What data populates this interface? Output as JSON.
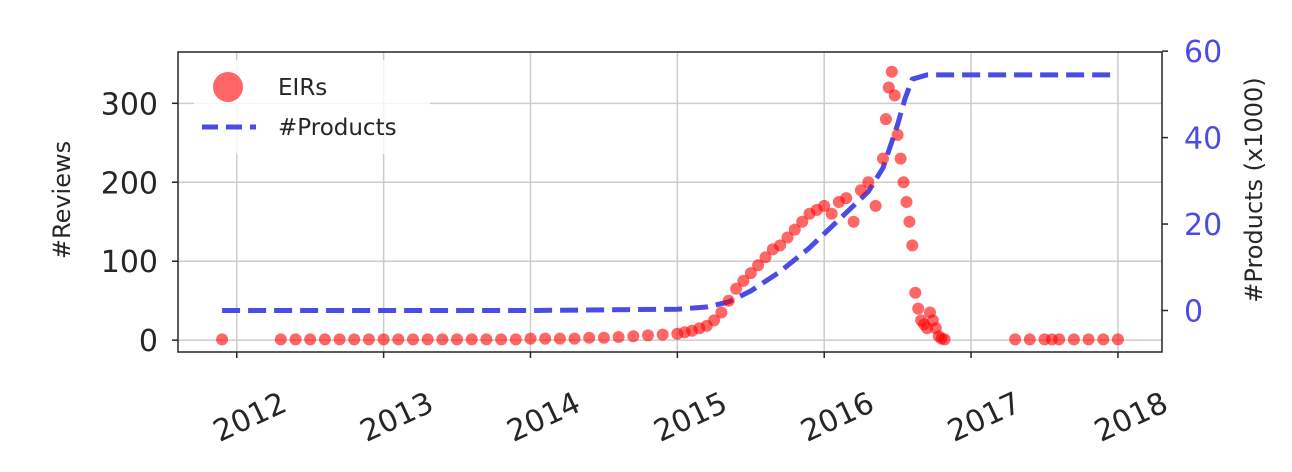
{
  "chart_data": {
    "type": "scatter",
    "title": "",
    "xlabel": "",
    "ylabel": "#Reviews",
    "y2label": "#Products (x1000)",
    "xlim": [
      2011.6,
      2018.3
    ],
    "ylim": [
      -15,
      365
    ],
    "y2lim": [
      -9.6,
      59.8
    ],
    "xticks": [
      2012,
      2013,
      2014,
      2015,
      2016,
      2017,
      2018
    ],
    "xtick_labels": [
      "2012",
      "2013",
      "2014",
      "2015",
      "2016",
      "2017",
      "2018"
    ],
    "yticks": [
      0,
      100,
      200,
      300
    ],
    "ytick_labels": [
      "0",
      "100",
      "200",
      "300"
    ],
    "y2ticks": [
      0,
      20,
      40,
      60
    ],
    "y2tick_labels": [
      "0",
      "20",
      "40",
      "60"
    ],
    "grid": true,
    "legend_position": "top-left",
    "colors": {
      "eirs": "#ff0000",
      "products": "#4b4be6",
      "axis_right": "#4b4be6",
      "grid": "#cccccc",
      "text": "#262626"
    },
    "series": [
      {
        "name": "EIRs",
        "kind": "scatter",
        "axis": "left",
        "x": [
          2011.9,
          2012.3,
          2012.4,
          2012.5,
          2012.6,
          2012.7,
          2012.8,
          2012.9,
          2013.0,
          2013.1,
          2013.2,
          2013.3,
          2013.4,
          2013.5,
          2013.6,
          2013.7,
          2013.8,
          2013.9,
          2014.0,
          2014.1,
          2014.2,
          2014.3,
          2014.4,
          2014.5,
          2014.6,
          2014.7,
          2014.8,
          2014.9,
          2015.0,
          2015.05,
          2015.1,
          2015.15,
          2015.2,
          2015.25,
          2015.3,
          2015.35,
          2015.4,
          2015.45,
          2015.5,
          2015.55,
          2015.6,
          2015.65,
          2015.7,
          2015.75,
          2015.8,
          2015.85,
          2015.9,
          2015.95,
          2016.0,
          2016.05,
          2016.1,
          2016.15,
          2016.2,
          2016.25,
          2016.3,
          2016.35,
          2016.4,
          2016.42,
          2016.44,
          2016.46,
          2016.48,
          2016.5,
          2016.52,
          2016.54,
          2016.56,
          2016.58,
          2016.6,
          2016.62,
          2016.64,
          2016.66,
          2016.68,
          2016.7,
          2016.72,
          2016.74,
          2016.76,
          2016.78,
          2016.8,
          2016.82,
          2017.3,
          2017.4,
          2017.5,
          2017.55,
          2017.6,
          2017.7,
          2017.8,
          2017.9,
          2018.0
        ],
        "y": [
          1,
          1,
          1,
          1,
          1,
          1,
          1,
          1,
          1,
          1,
          1,
          1,
          1,
          1,
          1,
          1,
          1,
          1,
          2,
          2,
          2,
          2,
          3,
          3,
          4,
          5,
          6,
          7,
          8,
          10,
          12,
          15,
          18,
          25,
          35,
          50,
          65,
          75,
          85,
          95,
          105,
          115,
          120,
          130,
          140,
          150,
          160,
          165,
          170,
          160,
          175,
          180,
          150,
          190,
          200,
          170,
          230,
          280,
          320,
          340,
          310,
          260,
          230,
          200,
          175,
          150,
          120,
          60,
          40,
          25,
          20,
          15,
          35,
          25,
          15,
          5,
          2,
          1,
          1,
          1,
          1,
          1,
          1,
          1,
          1,
          1,
          1
        ]
      },
      {
        "name": "#Products",
        "kind": "line",
        "axis": "right",
        "x": [
          2011.9,
          2013.0,
          2014.0,
          2015.0,
          2015.2,
          2015.35,
          2015.5,
          2015.7,
          2015.9,
          2016.1,
          2016.3,
          2016.4,
          2016.5,
          2016.55,
          2016.6,
          2016.7,
          2017.0,
          2017.5,
          2018.0
        ],
        "y": [
          0,
          0,
          0,
          0.3,
          0.8,
          2,
          4.5,
          9,
          14.5,
          21,
          27.5,
          33,
          43,
          49,
          53.5,
          54.5,
          54.5,
          54.5,
          54.5
        ]
      }
    ]
  }
}
